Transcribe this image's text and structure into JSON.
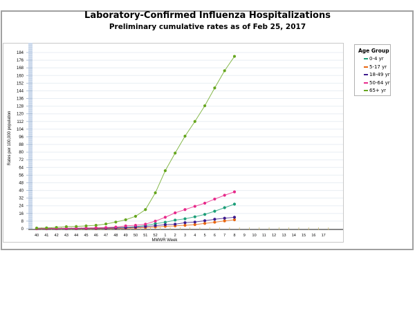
{
  "header": {
    "title": "Laboratory-Confirmed Influenza Hospitalizations",
    "subtitle": "Preliminary cumulative rates as of Feb 25, 2017"
  },
  "legend": {
    "title": "Age Group",
    "items": [
      {
        "label": "0-4 yr",
        "color": "#1a9e77"
      },
      {
        "label": "5-17 yr",
        "color": "#e8650e"
      },
      {
        "label": "18-49 yr",
        "color": "#3d1a8c"
      },
      {
        "label": "50-64 yr",
        "color": "#e7298a"
      },
      {
        "label": "65+ yr",
        "color": "#66a61e"
      }
    ]
  },
  "chart_data": {
    "type": "line",
    "title": "Laboratory-Confirmed Influenza Hospitalizations",
    "subtitle": "Preliminary cumulative rates as of Feb 25, 2017",
    "xlabel": "MMWR Week",
    "ylabel": "Rates per 100,000 population",
    "ylim": [
      0,
      184
    ],
    "yticks": [
      0,
      8,
      16,
      24,
      32,
      40,
      48,
      56,
      64,
      72,
      80,
      88,
      96,
      104,
      112,
      120,
      128,
      136,
      144,
      152,
      160,
      168,
      176,
      184
    ],
    "categories": [
      "40",
      "41",
      "42",
      "43",
      "44",
      "45",
      "46",
      "47",
      "48",
      "49",
      "50",
      "51",
      "52",
      "1",
      "2",
      "3",
      "4",
      "5",
      "6",
      "7",
      "8",
      "9",
      "10",
      "11",
      "12",
      "13",
      "14",
      "15",
      "16",
      "17"
    ],
    "grid": true,
    "legend_position": "right",
    "series": [
      {
        "name": "0-4 yr",
        "color": "#1a9e77",
        "values": [
          0.1,
          0.2,
          0.3,
          0.4,
          0.5,
          0.6,
          0.7,
          0.9,
          1.1,
          1.5,
          2.2,
          3.3,
          5.3,
          6.8,
          9.0,
          10.4,
          12.5,
          15.0,
          18.3,
          22.0,
          25.7
        ]
      },
      {
        "name": "5-17 yr",
        "color": "#e8650e",
        "values": [
          0.0,
          0.0,
          0.1,
          0.1,
          0.1,
          0.2,
          0.2,
          0.3,
          0.4,
          0.5,
          0.8,
          1.2,
          1.8,
          2.5,
          3.0,
          3.6,
          4.3,
          5.6,
          6.8,
          8.2,
          9.4
        ]
      },
      {
        "name": "18-49 yr",
        "color": "#3d1a8c",
        "values": [
          0.1,
          0.1,
          0.2,
          0.2,
          0.3,
          0.4,
          0.5,
          0.6,
          0.8,
          1.1,
          1.6,
          2.3,
          3.2,
          4.3,
          4.8,
          6.3,
          7.0,
          8.4,
          9.9,
          11.0,
          12.0
        ]
      },
      {
        "name": "50-64 yr",
        "color": "#e7298a",
        "values": [
          0.2,
          0.3,
          0.4,
          0.5,
          0.6,
          0.8,
          1.0,
          1.3,
          1.8,
          3.0,
          3.6,
          4.8,
          8.0,
          12.0,
          16.6,
          20.0,
          23.4,
          26.7,
          31.0,
          35.0,
          38.5
        ]
      },
      {
        "name": "65+ yr",
        "color": "#66a61e",
        "values": [
          0.7,
          0.9,
          1.4,
          2.2,
          2.4,
          3.0,
          3.6,
          5.0,
          7.0,
          9.4,
          13.0,
          20.0,
          37.5,
          60.6,
          79.0,
          96.7,
          112.0,
          128.4,
          147.0,
          165.0,
          180.0
        ]
      }
    ]
  }
}
